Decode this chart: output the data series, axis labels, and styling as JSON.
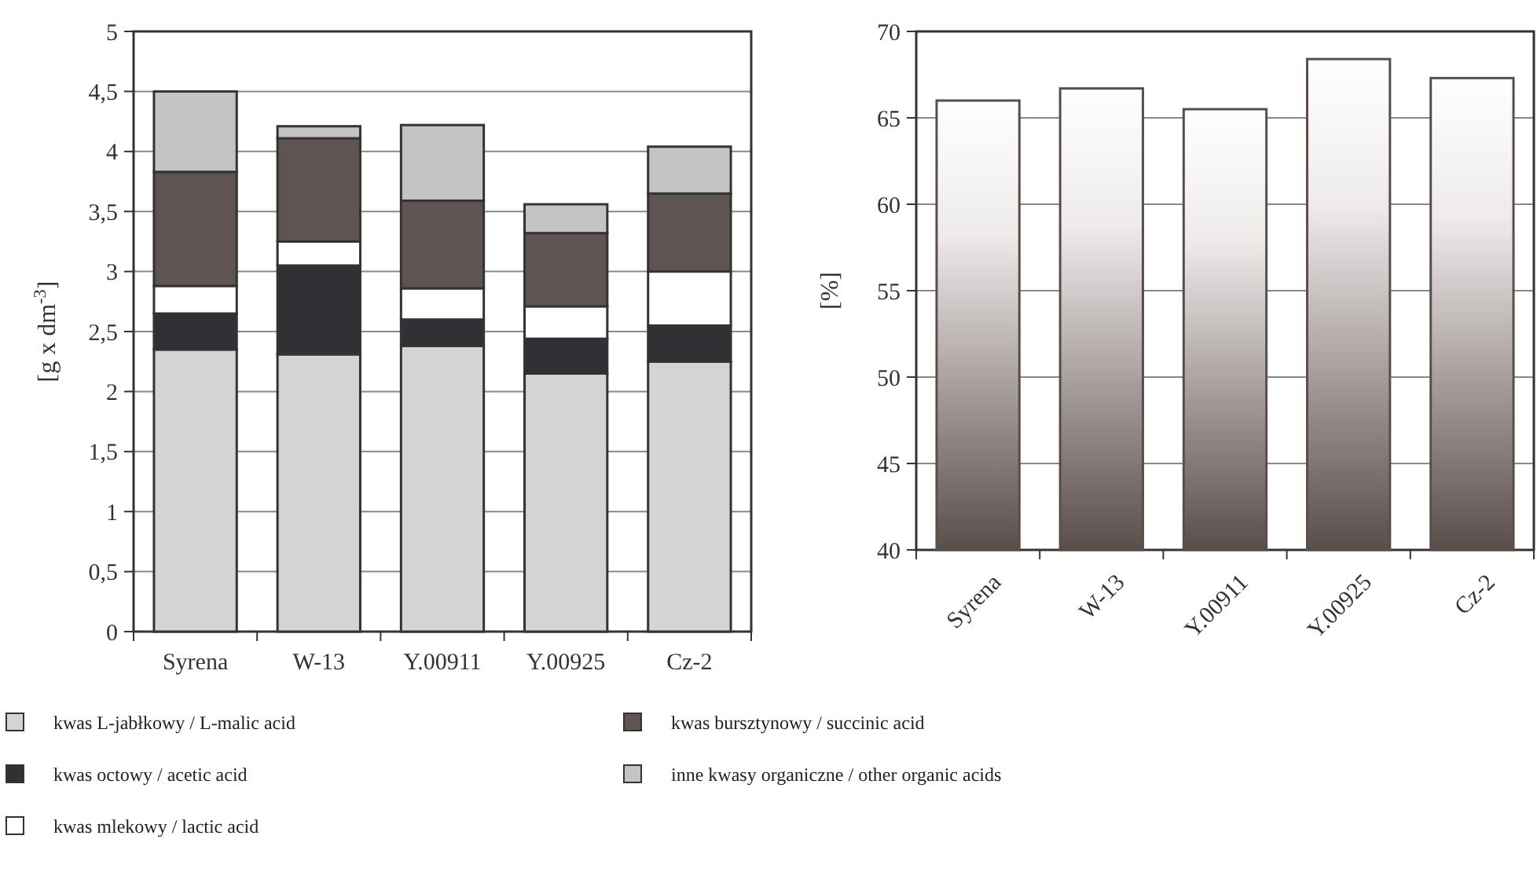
{
  "chart_data": [
    {
      "type": "bar",
      "stacked": true,
      "ylabel": "[g x dm$^{-3}$]",
      "categories": [
        "Syrena",
        "W-13",
        "Y.00911",
        "Y.00925",
        "Cz-2"
      ],
      "ylim": [
        0,
        5
      ],
      "yticks": [
        0,
        {
          "value": 0.5,
          "label": "0,5"
        },
        1,
        {
          "value": 1.5,
          "label": "1,5"
        },
        2,
        {
          "value": 2.5,
          "label": "2,5"
        },
        3,
        {
          "value": 3.5,
          "label": "3,5"
        },
        4,
        {
          "value": 4.5,
          "label": "4,5"
        },
        5
      ],
      "grid": "y",
      "legend": "bottom",
      "series": [
        {
          "name": "kwas L-jabłkowy / L-malic acid",
          "color": "#d4d4d4",
          "values": [
            2.35,
            2.31,
            2.38,
            2.15,
            2.25
          ]
        },
        {
          "name": "kwas octowy / acetic acid",
          "color": "#323034",
          "values": [
            0.3,
            0.74,
            0.22,
            0.29,
            0.3
          ]
        },
        {
          "name": "kwas mlekowy / lactic acid",
          "color": "#ffffff",
          "values": [
            0.23,
            0.2,
            0.26,
            0.27,
            0.45
          ]
        },
        {
          "name": "kwas bursztynowy / succinic acid",
          "color": "#5e5452",
          "values": [
            0.95,
            0.86,
            0.73,
            0.61,
            0.65
          ]
        },
        {
          "name": "inne kwasy organiczne / other organic acids",
          "color": "#c4c4c4",
          "values": [
            0.67,
            0.1,
            0.63,
            0.24,
            0.39
          ]
        }
      ]
    },
    {
      "type": "bar",
      "ylabel": "[%]",
      "categories": [
        "Syrena",
        "W-13",
        "Y.00911",
        "Y.00925",
        "Cz-2"
      ],
      "ylim": [
        40,
        70
      ],
      "yticks": [
        40,
        45,
        50,
        55,
        60,
        65,
        70
      ],
      "grid": "y",
      "color": "#5a4e4b",
      "values": [
        66.0,
        66.7,
        65.5,
        68.4,
        67.3
      ]
    }
  ]
}
